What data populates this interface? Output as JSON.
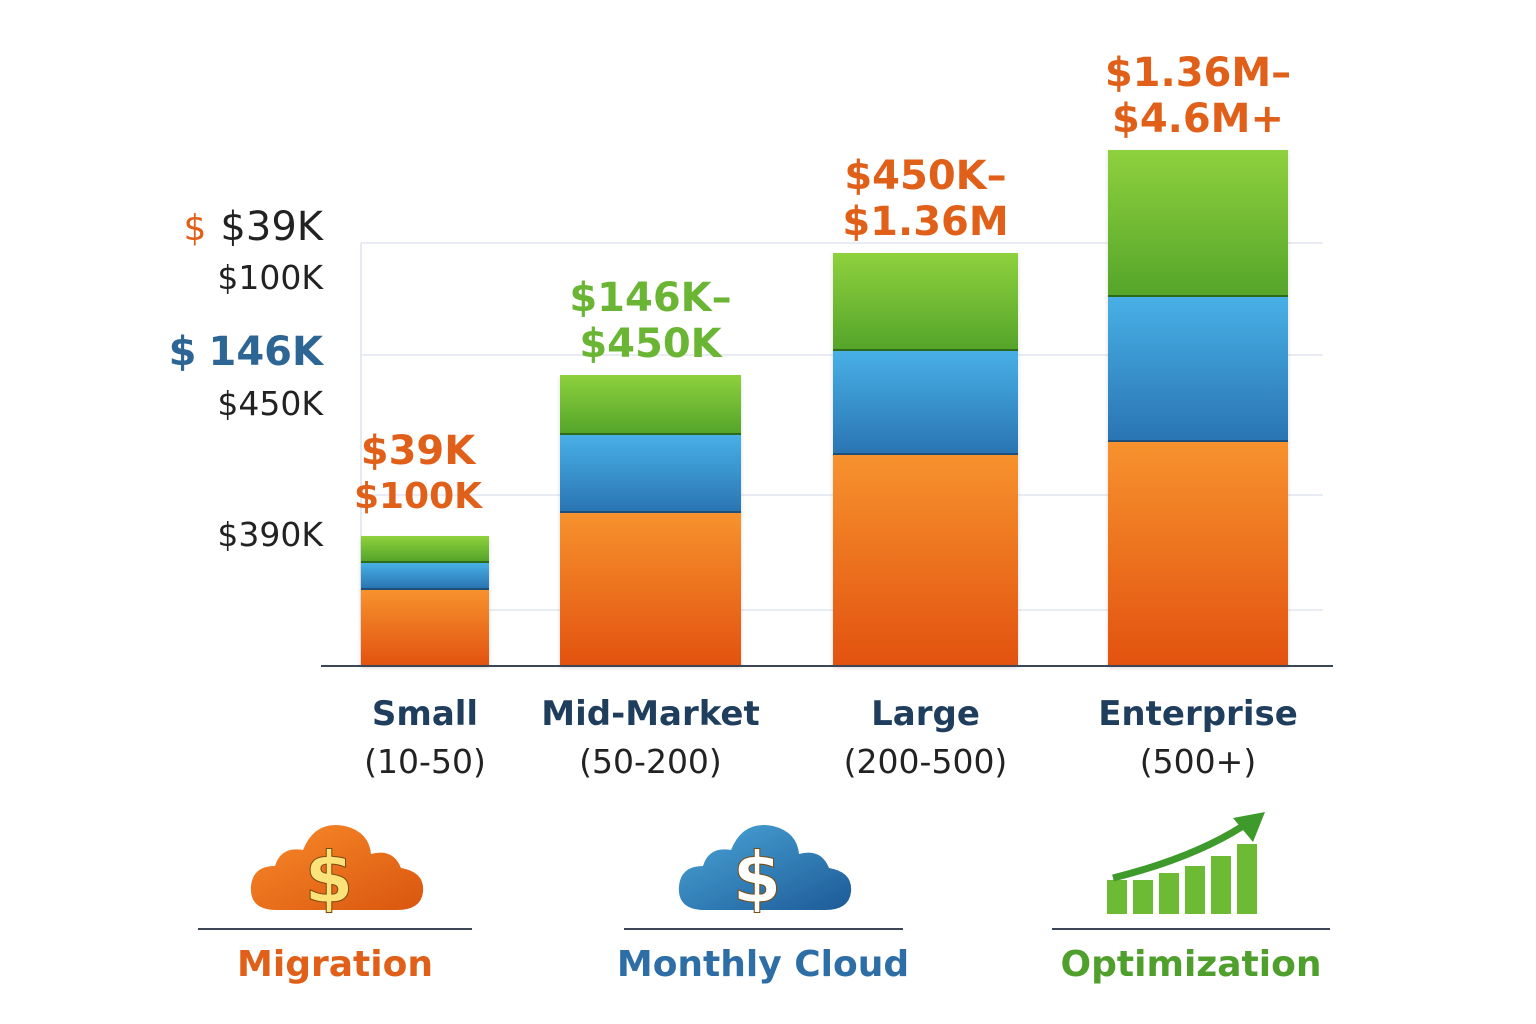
{
  "chart_data": {
    "type": "bar",
    "stacked": true,
    "title": "",
    "xlabel": "",
    "ylabel": "",
    "ylim": [
      0,
      100
    ],
    "grid": true,
    "categories": [
      {
        "name": "Small",
        "range": "(10-50)",
        "label_lines": [
          "$39K",
          "$100K"
        ],
        "label_color": "#e0601a"
      },
      {
        "name": "Mid-Market",
        "range": "(50-200)",
        "label_lines": [
          "$146K–",
          "$450K"
        ],
        "label_color": "#6ab533"
      },
      {
        "name": "Large",
        "range": "(200-500)",
        "label_lines": [
          "$450K–",
          "$1.36M"
        ],
        "label_color": "#e0601a"
      },
      {
        "name": "Enterprise",
        "range": "(500+)",
        "label_lines": [
          "$1.36M–",
          "$4.6M+"
        ],
        "label_color": "#e0601a"
      }
    ],
    "series": [
      {
        "name": "Migration",
        "color": "#ee7420",
        "values": [
          14.6,
          29.4,
          40.6,
          43
        ]
      },
      {
        "name": "Monthly Cloud",
        "color": "#2f7fc0",
        "values": [
          5.2,
          15,
          20,
          28
        ]
      },
      {
        "name": "Optimization",
        "color": "#6fba35",
        "values": [
          5.2,
          11.5,
          18.8,
          28.3
        ]
      }
    ],
    "y_labels": {
      "row1_symbol": "$",
      "row1_value": "$39K",
      "row2": "$100K",
      "row3_symbol": "$",
      "row3_value": "146K",
      "row4": "$450K",
      "row5": "$390K"
    },
    "legend_position": "bottom"
  },
  "legend": [
    {
      "label": "Migration",
      "icon": "cloud-dollar-icon",
      "color": "#e0601a"
    },
    {
      "label": "Monthly Cloud",
      "icon": "cloud-dollar-icon",
      "color": "#2d6ea6"
    },
    {
      "label": "Optimization",
      "icon": "growth-chart-icon",
      "color": "#4f9f2c"
    }
  ]
}
